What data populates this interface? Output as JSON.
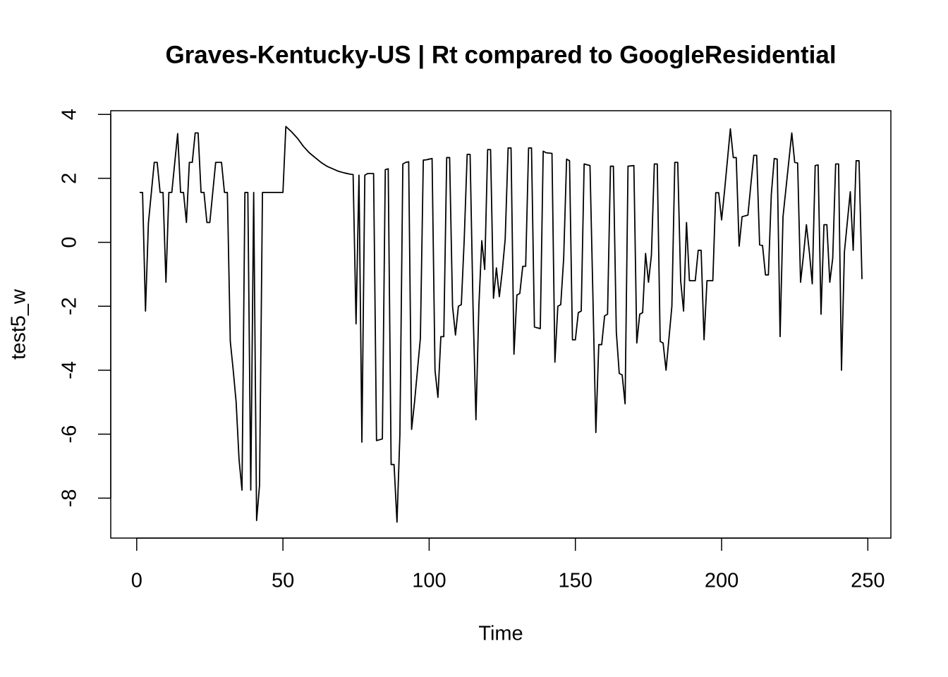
{
  "chart_data": {
    "type": "line",
    "title": "Graves-Kentucky-US | Rt compared to GoogleResidential",
    "x_label": "Time",
    "y_label": "test5_w",
    "xlim": [
      -8.88,
      257.88
    ],
    "ylim": [
      -9.25,
      4.115
    ],
    "xticks": [
      0,
      50,
      100,
      150,
      200,
      250
    ],
    "yticks": [
      -8,
      -6,
      -4,
      -2,
      0,
      2,
      4
    ],
    "series": [
      {
        "color": "#000000",
        "x": [
          1,
          2,
          3,
          4,
          6,
          7,
          8,
          9,
          10,
          11,
          12,
          14,
          15,
          16,
          17,
          18,
          19,
          20,
          21,
          22,
          23,
          24,
          25,
          27,
          28,
          29,
          30,
          31,
          32,
          33,
          34,
          35,
          36,
          37,
          38,
          39,
          40,
          41,
          42,
          43,
          50,
          51,
          53,
          55,
          57,
          59,
          61,
          63,
          65,
          67,
          69,
          71,
          73,
          74,
          75,
          76,
          77,
          78,
          79,
          81,
          82,
          84,
          85,
          86,
          87,
          88,
          89,
          90,
          91,
          92,
          93,
          94,
          95,
          96,
          97,
          98,
          99,
          100,
          101,
          102,
          103,
          104,
          105,
          106,
          107,
          108,
          109,
          110,
          111,
          112,
          113,
          114,
          115,
          116,
          117,
          118,
          119,
          120,
          121,
          122,
          123,
          124,
          125,
          126,
          127,
          128,
          129,
          130,
          131,
          132,
          133,
          134,
          135,
          136,
          138,
          139,
          140,
          142,
          143,
          144,
          145,
          146,
          147,
          148,
          149,
          150,
          151,
          152,
          153,
          155,
          156,
          157,
          158,
          159,
          160,
          161,
          162,
          163,
          164,
          165,
          166,
          167,
          168,
          170,
          171,
          172,
          173,
          174,
          175,
          176,
          177,
          178,
          179,
          180,
          181,
          182,
          183,
          184,
          185,
          186,
          187,
          188,
          189,
          191,
          192,
          193,
          194,
          195,
          197,
          198,
          199,
          200,
          201,
          203,
          204,
          205,
          206,
          207,
          209,
          210,
          211,
          212,
          213,
          214,
          215,
          216,
          217,
          218,
          219,
          220,
          221,
          224,
          225,
          226,
          227,
          228,
          229,
          230,
          231,
          232,
          233,
          234,
          235,
          236,
          237,
          238,
          239,
          240,
          241,
          242,
          244,
          245,
          246,
          247,
          248
        ],
        "values": [
          1.56,
          1.56,
          -2.15,
          0.6,
          2.5,
          2.5,
          1.56,
          1.56,
          -1.25,
          1.56,
          1.56,
          3.4,
          1.56,
          1.56,
          0.62,
          2.5,
          2.5,
          3.42,
          3.42,
          1.56,
          1.56,
          0.62,
          0.62,
          2.5,
          2.5,
          2.5,
          1.56,
          1.56,
          -3.1,
          -4,
          -5,
          -6.8,
          -7.75,
          1.56,
          1.56,
          -7.75,
          1.56,
          -8.7,
          -7.6,
          1.56,
          1.56,
          3.62,
          3.45,
          3.25,
          3,
          2.8,
          2.65,
          2.5,
          2.38,
          2.3,
          2.22,
          2.17,
          2.13,
          2.12,
          -2.55,
          2.1,
          -6.25,
          2.1,
          2.15,
          2.15,
          -6.2,
          -6.15,
          2.27,
          2.3,
          -6.95,
          -6.95,
          -8.75,
          -6,
          2.45,
          2.5,
          2.52,
          -5.85,
          -5,
          -4,
          -3,
          2.57,
          2.58,
          2.6,
          2.62,
          -4,
          -4.85,
          -2.95,
          -2.95,
          2.65,
          2.65,
          -2,
          -2.9,
          -2,
          -1.95,
          0.1,
          2.75,
          2.75,
          -2,
          -5.55,
          -2,
          0.05,
          -0.85,
          2.9,
          2.9,
          -1.75,
          -0.8,
          -1.7,
          -0.9,
          0.1,
          2.95,
          2.95,
          -3.5,
          -1.65,
          -1.6,
          -0.75,
          -0.75,
          2.95,
          2.95,
          -2.65,
          -2.7,
          2.85,
          2.8,
          2.78,
          -3.75,
          -2,
          -1.95,
          -0.5,
          2.6,
          2.55,
          -3.05,
          -3.05,
          -2.2,
          -2.15,
          2.45,
          2.4,
          -1.7,
          -5.95,
          -3.2,
          -3.2,
          -2.3,
          -2.25,
          2.38,
          2.38,
          -2.8,
          -4.1,
          -4.15,
          -5.05,
          2.38,
          2.4,
          -3.15,
          -2.25,
          -2.2,
          -0.35,
          -1.25,
          -0.4,
          2.45,
          2.45,
          -3.1,
          -3.15,
          -4,
          -3,
          -2,
          2.5,
          2.5,
          -1.2,
          -2.15,
          0.62,
          -1.2,
          -1.2,
          -0.25,
          -0.25,
          -3.05,
          -1.2,
          -1.2,
          1.55,
          1.55,
          0.7,
          1.6,
          3.55,
          2.65,
          2.65,
          -0.12,
          0.8,
          0.85,
          1.8,
          2.72,
          2.72,
          -0.08,
          -0.1,
          -1.02,
          -1.02,
          1.5,
          2.62,
          2.6,
          -2.95,
          0.8,
          3.42,
          2.5,
          2.48,
          -1.25,
          -0.4,
          0.55,
          -0.3,
          -1.3,
          2.4,
          2.42,
          -2.25,
          0.55,
          0.55,
          -1.25,
          -0.5,
          2.45,
          2.45,
          -4,
          -0.3,
          1.58,
          -0.25,
          2.55,
          2.55,
          -1.15
        ]
      }
    ]
  }
}
